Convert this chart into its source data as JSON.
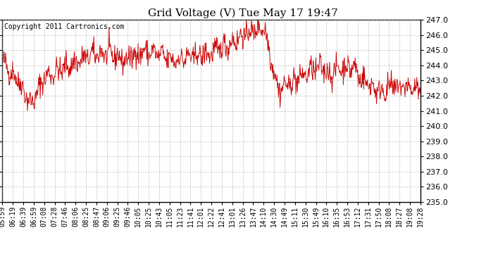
{
  "title": "Grid Voltage (V) Tue May 17 19:47",
  "copyright_text": "Copyright 2011 Cartronics.com",
  "line_color": "#cc0000",
  "background_color": "#ffffff",
  "plot_bg_color": "#ffffff",
  "grid_color": "#b0b0b0",
  "ylim": [
    235.0,
    247.0
  ],
  "yticks": [
    235.0,
    236.0,
    237.0,
    238.0,
    239.0,
    240.0,
    241.0,
    242.0,
    243.0,
    244.0,
    245.0,
    246.0,
    247.0
  ],
  "xtick_labels": [
    "05:59",
    "06:19",
    "06:39",
    "06:59",
    "07:08",
    "07:28",
    "07:46",
    "08:06",
    "08:25",
    "08:47",
    "09:06",
    "09:25",
    "09:46",
    "10:05",
    "10:25",
    "10:43",
    "11:05",
    "11:23",
    "11:41",
    "12:01",
    "12:22",
    "12:41",
    "13:01",
    "13:26",
    "13:47",
    "14:10",
    "14:30",
    "14:49",
    "15:11",
    "15:30",
    "15:49",
    "16:10",
    "16:35",
    "16:53",
    "17:12",
    "17:31",
    "17:50",
    "18:08",
    "18:27",
    "19:08",
    "19:28"
  ],
  "seed": 42,
  "n_points": 820,
  "title_fontsize": 11,
  "tick_fontsize": 7,
  "copyright_fontsize": 7
}
